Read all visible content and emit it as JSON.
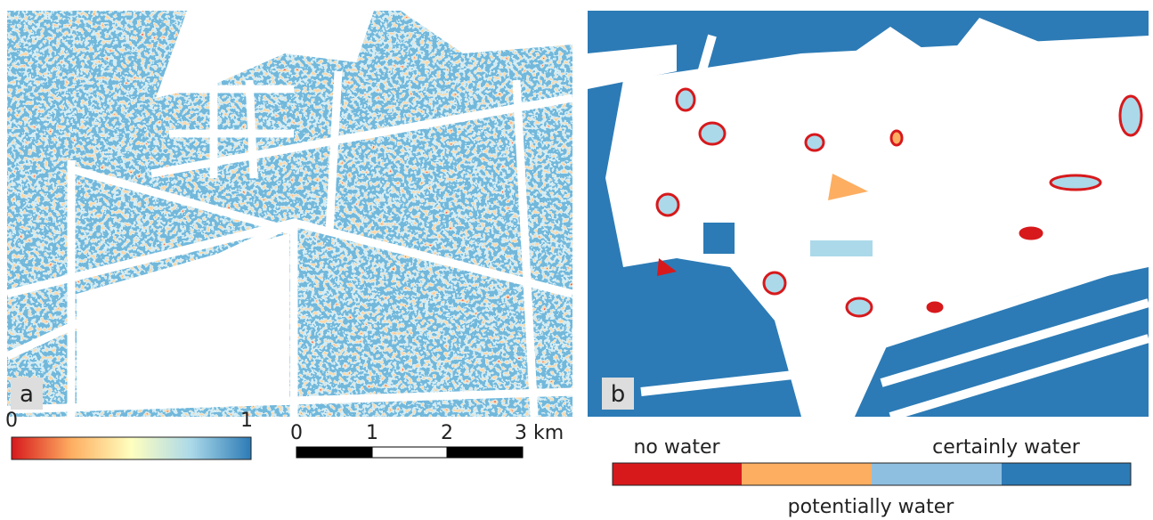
{
  "panel_a": {
    "label": "a",
    "colorbar": {
      "min_label": "0",
      "max_label": "1"
    }
  },
  "scale_bar": {
    "ticks": [
      "0",
      "1",
      "2",
      "3 km"
    ]
  },
  "panel_b": {
    "label": "b",
    "legend": {
      "left_label": "no water",
      "right_label": "certainly water",
      "bottom_label": "potentially water"
    }
  }
}
